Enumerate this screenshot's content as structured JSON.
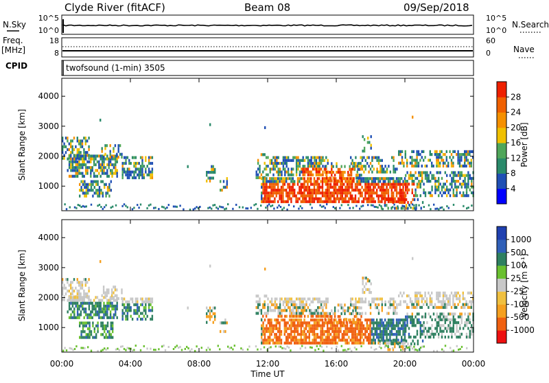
{
  "header": {
    "station": "Clyde River (fitACF)",
    "beam": "Beam 08",
    "date": "09/Sep/2018"
  },
  "left_labels": {
    "nsky": "N.Sky",
    "freq": "Freq.",
    "mhz": "[MHz]",
    "cpid": "CPID"
  },
  "right_labels": {
    "nsearch": "N.Search",
    "nave": "Nave"
  },
  "cpid_text": "twofsound (1-min) 3505",
  "noise_ticks": {
    "left": [
      "10^5",
      "10^0"
    ],
    "right": [
      "10^5",
      "10^0"
    ]
  },
  "freq_ticks": {
    "left": [
      "18",
      "8"
    ],
    "right": [
      "60",
      "0"
    ]
  },
  "colors": {
    "power": [
      "#0000ff",
      "#1f4fb4",
      "#2a8a6a",
      "#4fa65a",
      "#f0c000",
      "#f59000",
      "#f06000",
      "#ee2000"
    ],
    "velocity": [
      "#ee1010",
      "#f06010",
      "#f5a020",
      "#f0c040",
      "#c8c8c8",
      "#6ac030",
      "#2e8060",
      "#3060b8",
      "#1f40b0"
    ]
  },
  "chart_data": [
    {
      "type": "heatmap",
      "name": "power",
      "ylabel": "Slant Range [km]",
      "yticks": [
        "1000",
        "2000",
        "3000",
        "4000"
      ],
      "ylim": [
        180,
        4600
      ],
      "xticks": [
        "00:00",
        "04:00",
        "08:00",
        "12:00",
        "16:00",
        "20:00",
        "00:00"
      ],
      "xlim_hours": [
        0,
        24
      ],
      "colorbar_label": "Power [dB]",
      "colorbar_ticks": [
        "4",
        "8",
        "12",
        "16",
        "20",
        "24",
        "28"
      ]
    },
    {
      "type": "heatmap",
      "name": "velocity",
      "ylabel": "Slant Range [km]",
      "yticks": [
        "1000",
        "2000",
        "3000",
        "4000"
      ],
      "ylim": [
        180,
        4600
      ],
      "xticks": [
        "00:00",
        "04:00",
        "08:00",
        "12:00",
        "16:00",
        "20:00",
        "00:00"
      ],
      "xlim_hours": [
        0,
        24
      ],
      "xlabel": "Time UT",
      "colorbar_label": "Velocity [m s⁻¹]",
      "colorbar_ticks": [
        "-1000",
        "-500",
        "-100",
        "-25",
        "25",
        "100",
        "500",
        "1000"
      ]
    }
  ]
}
